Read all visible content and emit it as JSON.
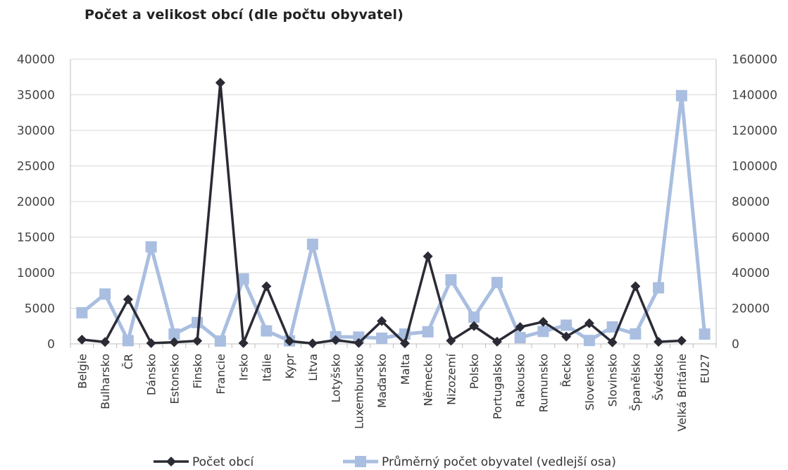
{
  "chart_data": {
    "type": "line",
    "title": "Počet a velikost obcí (dle počtu obyvatel)",
    "categories": [
      "Belgie",
      "Bulharsko",
      "ČR",
      "Dánsko",
      "Estonsko",
      "Finsko",
      "Francie",
      "Irsko",
      "Itálie",
      "Kypr",
      "Litva",
      "Lotyšsko",
      "Luxemburs­ko",
      "Maďarsko",
      "Malta",
      "Německo",
      "Nizozemí",
      "Polsko",
      "Portugalsko",
      "Rakousko",
      "Rumunsko",
      "Řecko",
      "Slovensko",
      "Slovinsko",
      "Španělsko",
      "Švédsko",
      "Velká Británie",
      "EU27"
    ],
    "series": [
      {
        "name": "Počet obcí",
        "axis": "left",
        "color": "#2b2b36",
        "marker": "diamond",
        "values": [
          600,
          260,
          6250,
          100,
          230,
          420,
          36700,
          110,
          8100,
          380,
          60,
          530,
          120,
          3200,
          70,
          12300,
          450,
          2500,
          310,
          2360,
          3100,
          1030,
          2900,
          210,
          8100,
          290,
          440,
          null
        ]
      },
      {
        "name": "Průměrný počet obyvatel (vedlejší osa)",
        "axis": "right",
        "color": "#a9bee0",
        "marker": "square",
        "values": [
          17500,
          28000,
          1800,
          54500,
          5500,
          12000,
          1600,
          36500,
          7300,
          1700,
          56000,
          4000,
          3800,
          3200,
          5500,
          6800,
          36000,
          15000,
          34500,
          3500,
          7000,
          10500,
          1900,
          9500,
          5600,
          31500,
          139500,
          5500
        ]
      }
    ],
    "y_left": {
      "min": 0,
      "max": 40000,
      "ticks": [
        0,
        5000,
        10000,
        15000,
        20000,
        25000,
        30000,
        35000,
        40000
      ]
    },
    "y_right": {
      "min": 0,
      "max": 160000,
      "ticks": [
        0,
        20000,
        40000,
        60000,
        80000,
        100000,
        120000,
        140000,
        160000
      ]
    },
    "grid": true,
    "legend_position": "bottom"
  }
}
